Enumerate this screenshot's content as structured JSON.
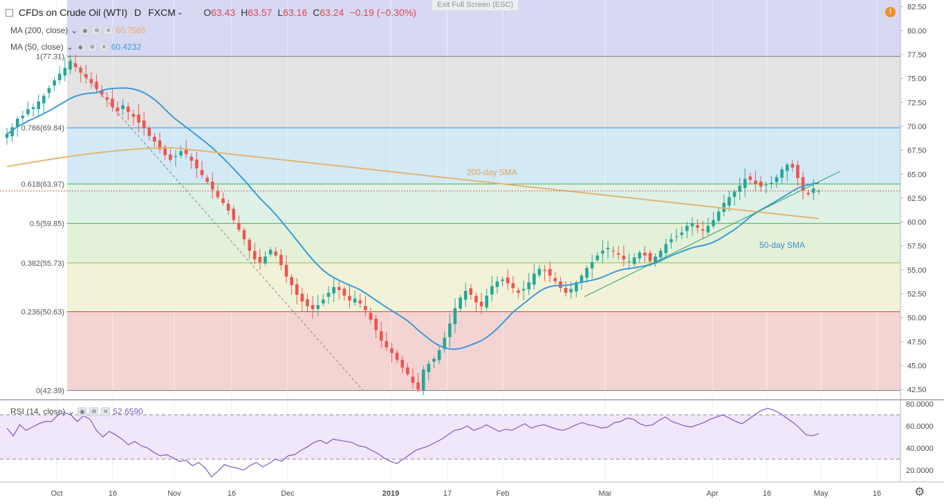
{
  "header": {
    "symbol": "CFDs on Crude Oil (WTI)",
    "interval": "D",
    "broker": "FXCM",
    "open_label": "O",
    "open": "63.43",
    "high_label": "H",
    "high": "63.57",
    "low_label": "L",
    "low": "63.16",
    "close_label": "C",
    "close": "63.24",
    "change": "−0.19 (−0.30%)"
  },
  "exit_fullscreen_label": "Exit Full Screen (ESC)",
  "indicators": [
    {
      "label": "MA (200, close)",
      "value": "60.7565",
      "color": "#f2a65a"
    },
    {
      "label": "MA (50, close)",
      "value": "60.4232",
      "color": "#3a9ad9"
    }
  ],
  "rsi_legend": {
    "label": "RSI (14, close)",
    "value": "52.6590",
    "color": "#7e57c2"
  },
  "price_badge": "63.24",
  "icons": [
    "eye-icon",
    "gear-icon",
    "close-icon",
    "chevron-down-icon",
    "alert-icon",
    "settings-gear-icon"
  ],
  "colors": {
    "up": "#26a69a",
    "down": "#ef5350",
    "ma200": "#e3b56f",
    "ma50": "#3a9ad9",
    "rsi": "#7e57c2",
    "trend": "#2e9c63"
  },
  "chart_data": [
    {
      "type": "candlestick",
      "title": "CFDs on Crude Oil (WTI)",
      "ylim": [
        41.5,
        83.2
      ],
      "y_ticks": [
        "82.50",
        "80.00",
        "77.50",
        "75.00",
        "72.50",
        "70.00",
        "67.50",
        "65.00",
        "62.50",
        "60.00",
        "57.50",
        "55.00",
        "52.50",
        "50.00",
        "47.50",
        "45.00",
        "42.50"
      ],
      "x_ticks": [
        "Oct",
        "16",
        "Nov",
        "16",
        "Dec",
        "2019",
        "17",
        "Feb",
        "Mar",
        "Apr",
        "16",
        "May",
        "16"
      ],
      "fibonacci": [
        {
          "label": "1(77.31)",
          "level": 77.31
        },
        {
          "label": "0.786(69.84)",
          "level": 69.84
        },
        {
          "label": "0.618(63.97)",
          "level": 63.97
        },
        {
          "label": "0.5(59.85)",
          "level": 59.85
        },
        {
          "label": "0.382(55.73)",
          "level": 55.73
        },
        {
          "label": "0.236(50.63)",
          "level": 50.63
        },
        {
          "label": "0(42.39)",
          "level": 42.39
        }
      ],
      "annotations": [
        "200-day SMA",
        "50-day SMA"
      ],
      "close_series": [
        69.2,
        69.9,
        70.8,
        71.1,
        71.8,
        72.0,
        72.6,
        73.2,
        74.0,
        74.8,
        75.5,
        76.1,
        76.8,
        76.2,
        75.6,
        75.1,
        74.5,
        73.9,
        73.3,
        72.8,
        72.0,
        71.6,
        72.2,
        71.5,
        71.0,
        70.4,
        69.8,
        69.0,
        68.4,
        67.6,
        67.0,
        66.5,
        66.9,
        67.4,
        67.1,
        66.4,
        65.6,
        64.9,
        64.2,
        63.4,
        62.6,
        62.0,
        61.2,
        60.2,
        59.2,
        58.2,
        57.0,
        56.1,
        55.8,
        56.4,
        57.1,
        56.5,
        55.5,
        54.3,
        53.4,
        52.4,
        51.7,
        51.2,
        50.9,
        51.3,
        51.9,
        52.6,
        53.2,
        52.9,
        52.3,
        51.8,
        52.0,
        51.5,
        50.8,
        49.8,
        48.7,
        47.6,
        46.9,
        46.3,
        45.6,
        44.8,
        44.1,
        43.2,
        42.5,
        44.6,
        45.2,
        45.7,
        46.6,
        47.9,
        49.4,
        51.0,
        52.1,
        52.8,
        52.4,
        51.6,
        51.2,
        52.3,
        53.3,
        53.8,
        54.0,
        53.6,
        53.1,
        52.6,
        53.0,
        53.7,
        54.6,
        55.1,
        54.9,
        54.4,
        53.8,
        53.1,
        52.6,
        53.0,
        53.7,
        54.4,
        55.2,
        55.8,
        56.5,
        57.0,
        57.3,
        57.0,
        56.6,
        56.1,
        55.9,
        56.3,
        56.8,
        56.5,
        55.9,
        56.4,
        57.0,
        57.7,
        58.2,
        58.5,
        58.9,
        59.6,
        59.9,
        59.4,
        59.1,
        59.6,
        60.2,
        61.1,
        62.0,
        62.6,
        63.2,
        63.8,
        64.5,
        64.4,
        64.0,
        63.7,
        63.9,
        64.1,
        64.7,
        65.5,
        66.0,
        65.7,
        64.6,
        63.3,
        62.9,
        63.5,
        63.24
      ],
      "rsi_ylim": [
        10,
        83
      ],
      "rsi_levels": [
        70,
        30
      ],
      "rsi_ticks": [
        "80.0000",
        "60.0000",
        "40.0000",
        "20.0000"
      ],
      "rsi_series": [
        58,
        51,
        61,
        56,
        59,
        62,
        64,
        64,
        70,
        72,
        70,
        64,
        69,
        66,
        56,
        50,
        55,
        52,
        48,
        43,
        46,
        42,
        40,
        36,
        33,
        34,
        31,
        28,
        29,
        24,
        27,
        22,
        14,
        19,
        25,
        23,
        22,
        20,
        24,
        27,
        23,
        26,
        30,
        28,
        33,
        34,
        38,
        41,
        45,
        47,
        44,
        48,
        47,
        46,
        45,
        42,
        41,
        38,
        35,
        31,
        28,
        26,
        30,
        34,
        38,
        40,
        42,
        45,
        48,
        52,
        56,
        57,
        60,
        56,
        58,
        61,
        58,
        55,
        57,
        56,
        59,
        62,
        58,
        60,
        61,
        59,
        57,
        56,
        58,
        61,
        63,
        61,
        60,
        58,
        59,
        63,
        64,
        67,
        66,
        62,
        60,
        61,
        65,
        68,
        64,
        62,
        60,
        59,
        61,
        63,
        66,
        68,
        70,
        67,
        64,
        62,
        66,
        70,
        74,
        76,
        74,
        71,
        67,
        63,
        58,
        52,
        51,
        53
      ],
      "rsi_value": 52.659
    }
  ]
}
